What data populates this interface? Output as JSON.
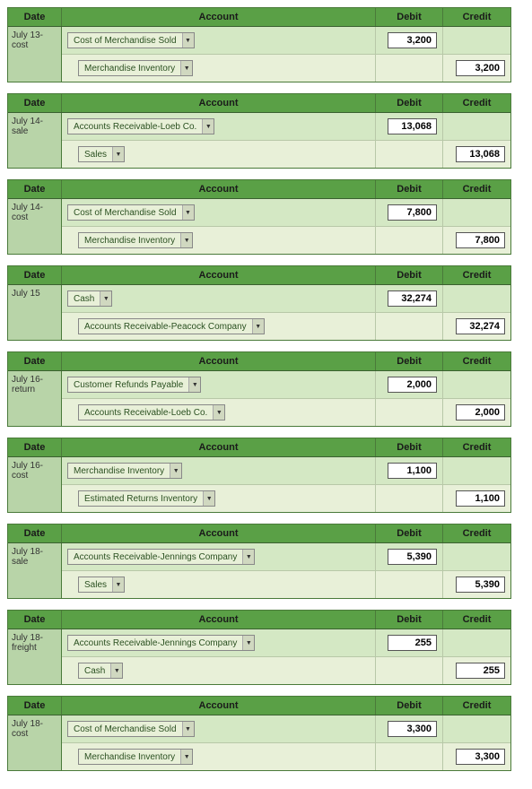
{
  "headers": {
    "date": "Date",
    "account": "Account",
    "debit": "Debit",
    "credit": "Credit"
  },
  "colors": {
    "header_bg": "#5aa046",
    "date_bg": "#b8d4a8",
    "debit_row_bg": "#d4e8c4",
    "credit_row_bg": "#e8f0d8",
    "border": "#4a7a3a",
    "input_bg": "#ffffff"
  },
  "entries": [
    {
      "date": "July 13-cost",
      "rows": [
        {
          "type": "debit",
          "account": "Cost of Merchandise Sold",
          "amount": "3,200"
        },
        {
          "type": "credit",
          "account": "Merchandise Inventory",
          "amount": "3,200"
        }
      ]
    },
    {
      "date": "July 14-sale",
      "rows": [
        {
          "type": "debit",
          "account": "Accounts Receivable-Loeb Co.",
          "amount": "13,068"
        },
        {
          "type": "credit",
          "account": "Sales",
          "amount": "13,068"
        }
      ]
    },
    {
      "date": "July 14-cost",
      "rows": [
        {
          "type": "debit",
          "account": "Cost of Merchandise Sold",
          "amount": "7,800"
        },
        {
          "type": "credit",
          "account": "Merchandise Inventory",
          "amount": "7,800"
        }
      ]
    },
    {
      "date": "July 15",
      "rows": [
        {
          "type": "debit",
          "account": "Cash",
          "amount": "32,274"
        },
        {
          "type": "credit",
          "account": "Accounts Receivable-Peacock Company",
          "amount": "32,274"
        }
      ]
    },
    {
      "date": "July 16-return",
      "rows": [
        {
          "type": "debit",
          "account": "Customer Refunds Payable",
          "amount": "2,000"
        },
        {
          "type": "credit",
          "account": "Accounts Receivable-Loeb Co.",
          "amount": "2,000"
        }
      ]
    },
    {
      "date": "July 16-cost",
      "rows": [
        {
          "type": "debit",
          "account": "Merchandise Inventory",
          "amount": "1,100"
        },
        {
          "type": "credit",
          "account": "Estimated Returns Inventory",
          "amount": "1,100"
        }
      ]
    },
    {
      "date": "July 18-sale",
      "rows": [
        {
          "type": "debit",
          "account": "Accounts Receivable-Jennings Company",
          "amount": "5,390"
        },
        {
          "type": "credit",
          "account": "Sales",
          "amount": "5,390"
        }
      ]
    },
    {
      "date": "July 18-freight",
      "rows": [
        {
          "type": "debit",
          "account": "Accounts Receivable-Jennings Company",
          "amount": "255"
        },
        {
          "type": "credit",
          "account": "Cash",
          "amount": "255"
        }
      ]
    },
    {
      "date": "July 18-cost",
      "rows": [
        {
          "type": "debit",
          "account": "Cost of Merchandise Sold",
          "amount": "3,300"
        },
        {
          "type": "credit",
          "account": "Merchandise Inventory",
          "amount": "3,300"
        }
      ]
    }
  ]
}
